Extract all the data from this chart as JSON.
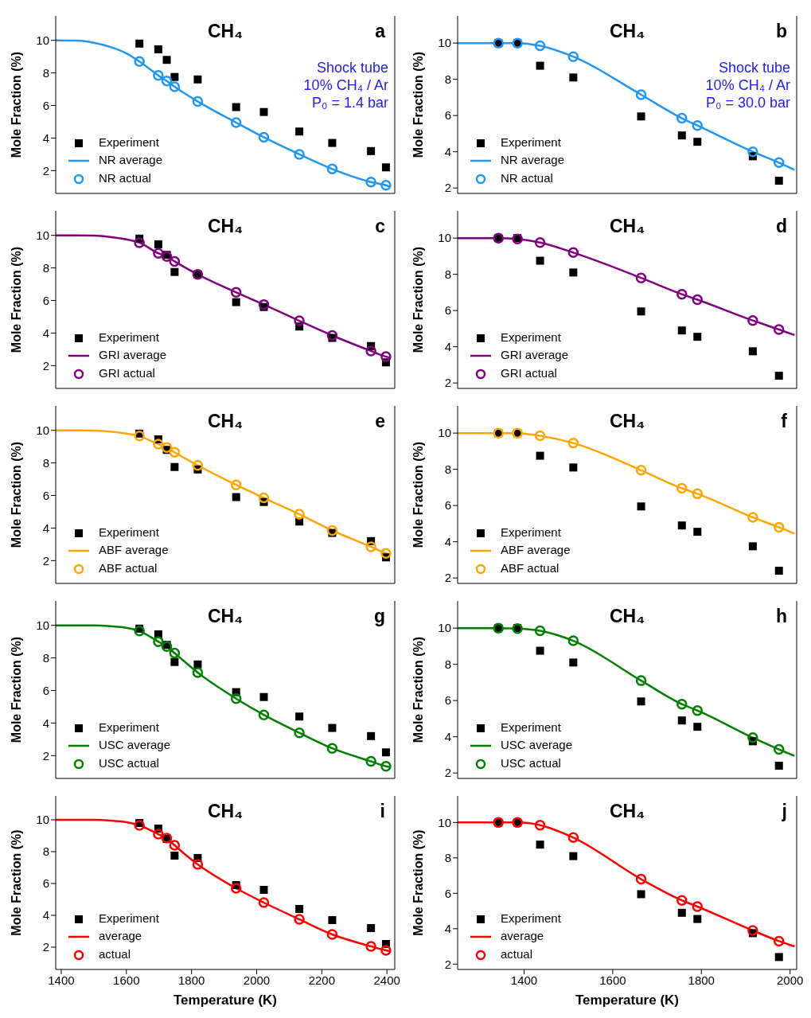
{
  "chart_data": [
    {
      "type": "line",
      "title": "CH₄",
      "ylabel": "Mole Fraction (%)",
      "annotations": [
        "a",
        "Shock tube",
        "10% CH₄ / Ar",
        "P₀ = 1.4 bar"
      ],
      "xlim": [
        1383,
        2424
      ],
      "xticks": [
        1400,
        1600,
        1800,
        2000,
        2200,
        2400
      ],
      "ylim": [
        0.6,
        11.5
      ],
      "yticks": [
        2,
        4,
        6,
        8,
        10
      ],
      "tick_labels": "y",
      "legend": "bottom left",
      "series": [
        {
          "name": "Experiment",
          "type": "scatter",
          "marker": "square",
          "color": "#000000",
          "x": [
            1640,
            1698,
            1724,
            1748,
            1819,
            1937,
            2022,
            2131,
            2232,
            2351,
            2397
          ],
          "values": [
            9.8,
            9.45,
            8.8,
            7.75,
            7.6,
            5.9,
            5.6,
            4.4,
            3.7,
            3.2,
            2.2
          ]
        },
        {
          "name": "NR average",
          "type": "line",
          "marker": "none",
          "color": "#2196f3",
          "x": [
            1383,
            1450,
            1500,
            1550,
            1600,
            1640,
            1698,
            1724,
            1748,
            1819,
            1937,
            2022,
            2131,
            2232,
            2351,
            2397,
            2410
          ],
          "values": [
            10,
            9.98,
            9.85,
            9.6,
            9.2,
            8.7,
            7.85,
            7.5,
            7.15,
            6.25,
            4.95,
            4.05,
            3.0,
            2.1,
            1.3,
            1.1,
            1.0
          ]
        },
        {
          "name": "NR actual",
          "type": "scatter",
          "marker": "circle",
          "color": "#2196f3",
          "x": [
            1640,
            1698,
            1724,
            1748,
            1819,
            1937,
            2022,
            2131,
            2232,
            2351,
            2397
          ],
          "values": [
            8.7,
            7.85,
            7.5,
            7.15,
            6.25,
            4.95,
            4.05,
            3.0,
            2.1,
            1.3,
            1.1
          ]
        }
      ]
    },
    {
      "type": "line",
      "title": "CH₄",
      "ylabel": "Mole Fraction (%)",
      "annotations": [
        "b",
        "Shock tube",
        "10% CH₄ / Ar",
        "P₀ = 30.0 bar"
      ],
      "xlim": [
        1250,
        2015
      ],
      "xticks": [
        1400,
        1600,
        1800,
        2000
      ],
      "ylim": [
        1.7,
        11.5
      ],
      "yticks": [
        2,
        4,
        6,
        8,
        10
      ],
      "tick_labels": "y",
      "legend": "bottom left",
      "series": [
        {
          "name": "Experiment",
          "type": "scatter",
          "marker": "square",
          "color": "#000000",
          "x": [
            1342,
            1385,
            1436,
            1511,
            1664,
            1756,
            1791,
            1916,
            1975
          ],
          "values": [
            10.0,
            10.0,
            8.75,
            8.1,
            5.95,
            4.9,
            4.55,
            3.75,
            2.4
          ]
        },
        {
          "name": "NR average",
          "type": "line",
          "marker": "none",
          "color": "#2196f3",
          "x": [
            1250,
            1300,
            1342,
            1385,
            1436,
            1511,
            1664,
            1756,
            1791,
            1916,
            1975,
            2010
          ],
          "values": [
            10,
            10,
            10.0,
            10.0,
            9.85,
            9.25,
            7.15,
            5.85,
            5.45,
            4.0,
            3.4,
            3.0
          ]
        },
        {
          "name": "NR actual",
          "type": "scatter",
          "marker": "circle",
          "color": "#2196f3",
          "x": [
            1342,
            1385,
            1436,
            1511,
            1664,
            1756,
            1791,
            1916,
            1975
          ],
          "values": [
            10.0,
            10.0,
            9.85,
            9.25,
            7.15,
            5.85,
            5.45,
            4.0,
            3.4
          ]
        }
      ]
    },
    {
      "type": "line",
      "title": "CH₄",
      "ylabel": "Mole Fraction (%)",
      "annotations": [
        "c"
      ],
      "xlim": [
        1383,
        2424
      ],
      "xticks": [
        1400,
        1600,
        1800,
        2000,
        2200,
        2400
      ],
      "ylim": [
        0.6,
        11.5
      ],
      "yticks": [
        2,
        4,
        6,
        8,
        10
      ],
      "tick_labels": "y",
      "legend": "bottom left",
      "series": [
        {
          "name": "Experiment",
          "type": "scatter",
          "marker": "square",
          "color": "#000000",
          "x": [
            1640,
            1698,
            1724,
            1748,
            1819,
            1937,
            2022,
            2131,
            2232,
            2351,
            2397
          ],
          "values": [
            9.8,
            9.45,
            8.8,
            7.75,
            7.6,
            5.9,
            5.6,
            4.4,
            3.7,
            3.2,
            2.2
          ]
        },
        {
          "name": "GRI average",
          "type": "line",
          "marker": "none",
          "color": "#800080",
          "x": [
            1383,
            1450,
            1500,
            1550,
            1600,
            1640,
            1698,
            1724,
            1748,
            1819,
            1937,
            2022,
            2131,
            2232,
            2351,
            2397,
            2410
          ],
          "values": [
            10,
            10,
            9.98,
            9.9,
            9.75,
            9.55,
            8.9,
            8.7,
            8.4,
            7.6,
            6.5,
            5.75,
            4.75,
            3.85,
            2.9,
            2.55,
            2.5
          ]
        },
        {
          "name": "GRI actual",
          "type": "scatter",
          "marker": "circle",
          "color": "#800080",
          "x": [
            1640,
            1698,
            1724,
            1748,
            1819,
            1937,
            2022,
            2131,
            2232,
            2351,
            2397
          ],
          "values": [
            9.55,
            8.9,
            8.7,
            8.4,
            7.6,
            6.5,
            5.75,
            4.75,
            3.85,
            2.9,
            2.55
          ]
        }
      ]
    },
    {
      "type": "line",
      "title": "CH₄",
      "ylabel": "Mole Fraction (%)",
      "annotations": [
        "d"
      ],
      "xlim": [
        1250,
        2015
      ],
      "xticks": [
        1400,
        1600,
        1800,
        2000
      ],
      "ylim": [
        1.7,
        11.5
      ],
      "yticks": [
        2,
        4,
        6,
        8,
        10
      ],
      "tick_labels": "y",
      "legend": "bottom left",
      "series": [
        {
          "name": "Experiment",
          "type": "scatter",
          "marker": "square",
          "color": "#000000",
          "x": [
            1342,
            1385,
            1436,
            1511,
            1664,
            1756,
            1791,
            1916,
            1975
          ],
          "values": [
            10.0,
            10.0,
            8.75,
            8.1,
            5.95,
            4.9,
            4.55,
            3.75,
            2.4
          ]
        },
        {
          "name": "GRI average",
          "type": "line",
          "marker": "none",
          "color": "#800080",
          "x": [
            1250,
            1300,
            1342,
            1385,
            1436,
            1511,
            1664,
            1756,
            1791,
            1916,
            1975,
            2010
          ],
          "values": [
            10,
            10,
            10.0,
            9.95,
            9.75,
            9.2,
            7.8,
            6.9,
            6.6,
            5.45,
            4.95,
            4.65
          ]
        },
        {
          "name": "GRI actual",
          "type": "scatter",
          "marker": "circle",
          "color": "#800080",
          "x": [
            1342,
            1385,
            1436,
            1511,
            1664,
            1756,
            1791,
            1916,
            1975
          ],
          "values": [
            10.0,
            9.95,
            9.75,
            9.2,
            7.8,
            6.9,
            6.6,
            5.45,
            4.95
          ]
        }
      ]
    },
    {
      "type": "line",
      "title": "CH₄",
      "ylabel": "Mole Fraction (%)",
      "annotations": [
        "e"
      ],
      "xlim": [
        1383,
        2424
      ],
      "xticks": [
        1400,
        1600,
        1800,
        2000,
        2200,
        2400
      ],
      "ylim": [
        0.6,
        11.5
      ],
      "yticks": [
        2,
        4,
        6,
        8,
        10
      ],
      "tick_labels": "y",
      "legend": "bottom left",
      "series": [
        {
          "name": "Experiment",
          "type": "scatter",
          "marker": "square",
          "color": "#000000",
          "x": [
            1640,
            1698,
            1724,
            1748,
            1819,
            1937,
            2022,
            2131,
            2232,
            2351,
            2397
          ],
          "values": [
            9.8,
            9.45,
            8.8,
            7.75,
            7.6,
            5.9,
            5.6,
            4.4,
            3.7,
            3.2,
            2.2
          ]
        },
        {
          "name": "ABF average",
          "type": "line",
          "marker": "none",
          "color": "#ffa500",
          "x": [
            1383,
            1450,
            1500,
            1550,
            1600,
            1640,
            1698,
            1724,
            1748,
            1819,
            1937,
            2022,
            2131,
            2232,
            2351,
            2397,
            2410
          ],
          "values": [
            10,
            10,
            9.98,
            9.92,
            9.8,
            9.65,
            9.15,
            8.95,
            8.65,
            7.85,
            6.65,
            5.85,
            4.85,
            3.85,
            2.85,
            2.45,
            2.35
          ]
        },
        {
          "name": "ABF actual",
          "type": "scatter",
          "marker": "circle",
          "color": "#ffa500",
          "x": [
            1640,
            1698,
            1724,
            1748,
            1819,
            1937,
            2022,
            2131,
            2232,
            2351,
            2397
          ],
          "values": [
            9.65,
            9.15,
            8.95,
            8.65,
            7.85,
            6.65,
            5.85,
            4.85,
            3.85,
            2.85,
            2.45
          ]
        }
      ]
    },
    {
      "type": "line",
      "title": "CH₄",
      "ylabel": "Mole Fraction (%)",
      "annotations": [
        "f"
      ],
      "xlim": [
        1250,
        2015
      ],
      "xticks": [
        1400,
        1600,
        1800,
        2000
      ],
      "ylim": [
        1.7,
        11.5
      ],
      "yticks": [
        2,
        4,
        6,
        8,
        10
      ],
      "tick_labels": "y",
      "legend": "bottom left",
      "series": [
        {
          "name": "Experiment",
          "type": "scatter",
          "marker": "square",
          "color": "#000000",
          "x": [
            1342,
            1385,
            1436,
            1511,
            1664,
            1756,
            1791,
            1916,
            1975
          ],
          "values": [
            10.0,
            10.0,
            8.75,
            8.1,
            5.95,
            4.9,
            4.55,
            3.75,
            2.4
          ]
        },
        {
          "name": "ABF average",
          "type": "line",
          "marker": "none",
          "color": "#ffa500",
          "x": [
            1250,
            1300,
            1342,
            1385,
            1436,
            1511,
            1664,
            1756,
            1791,
            1916,
            1975,
            2010
          ],
          "values": [
            10,
            10,
            10.0,
            10.0,
            9.85,
            9.45,
            7.95,
            6.95,
            6.65,
            5.35,
            4.8,
            4.45
          ]
        },
        {
          "name": "ABF actual",
          "type": "scatter",
          "marker": "circle",
          "color": "#ffa500",
          "x": [
            1342,
            1385,
            1436,
            1511,
            1664,
            1756,
            1791,
            1916,
            1975
          ],
          "values": [
            10.0,
            10.0,
            9.85,
            9.45,
            7.95,
            6.95,
            6.65,
            5.35,
            4.8
          ]
        }
      ]
    },
    {
      "type": "line",
      "title": "CH₄",
      "ylabel": "Mole Fraction (%)",
      "annotations": [
        "g"
      ],
      "xlim": [
        1383,
        2424
      ],
      "xticks": [
        1400,
        1600,
        1800,
        2000,
        2200,
        2400
      ],
      "ylim": [
        0.6,
        11.5
      ],
      "yticks": [
        2,
        4,
        6,
        8,
        10
      ],
      "tick_labels": "y",
      "legend": "bottom left",
      "series": [
        {
          "name": "Experiment",
          "type": "scatter",
          "marker": "square",
          "color": "#000000",
          "x": [
            1640,
            1698,
            1724,
            1748,
            1819,
            1937,
            2022,
            2131,
            2232,
            2351,
            2397
          ],
          "values": [
            9.8,
            9.45,
            8.8,
            7.75,
            7.6,
            5.9,
            5.6,
            4.4,
            3.7,
            3.2,
            2.2
          ]
        },
        {
          "name": "USC average",
          "type": "line",
          "marker": "none",
          "color": "#008000",
          "x": [
            1383,
            1450,
            1500,
            1550,
            1600,
            1640,
            1698,
            1724,
            1748,
            1819,
            1937,
            2022,
            2131,
            2232,
            2351,
            2397,
            2410
          ],
          "values": [
            10,
            10,
            10,
            9.95,
            9.85,
            9.65,
            9.0,
            8.7,
            8.3,
            7.1,
            5.5,
            4.5,
            3.4,
            2.45,
            1.65,
            1.35,
            1.3
          ]
        },
        {
          "name": "USC actual",
          "type": "scatter",
          "marker": "circle",
          "color": "#008000",
          "x": [
            1640,
            1698,
            1724,
            1748,
            1819,
            1937,
            2022,
            2131,
            2232,
            2351,
            2397
          ],
          "values": [
            9.65,
            9.0,
            8.7,
            8.3,
            7.1,
            5.5,
            4.5,
            3.4,
            2.45,
            1.65,
            1.35
          ]
        }
      ]
    },
    {
      "type": "line",
      "title": "CH₄",
      "ylabel": "Mole Fraction (%)",
      "annotations": [
        "h"
      ],
      "xlim": [
        1250,
        2015
      ],
      "xticks": [
        1400,
        1600,
        1800,
        2000
      ],
      "ylim": [
        1.7,
        11.5
      ],
      "yticks": [
        2,
        4,
        6,
        8,
        10
      ],
      "tick_labels": "y",
      "legend": "bottom left",
      "series": [
        {
          "name": "Experiment",
          "type": "scatter",
          "marker": "square",
          "color": "#000000",
          "x": [
            1342,
            1385,
            1436,
            1511,
            1664,
            1756,
            1791,
            1916,
            1975
          ],
          "values": [
            10.0,
            10.0,
            8.75,
            8.1,
            5.95,
            4.9,
            4.55,
            3.75,
            2.4
          ]
        },
        {
          "name": "USC average",
          "type": "line",
          "marker": "none",
          "color": "#008000",
          "x": [
            1250,
            1300,
            1342,
            1385,
            1436,
            1511,
            1664,
            1756,
            1791,
            1916,
            1975,
            2010
          ],
          "values": [
            10,
            10,
            10.0,
            9.97,
            9.85,
            9.3,
            7.1,
            5.8,
            5.45,
            3.95,
            3.3,
            2.95
          ]
        },
        {
          "name": "USC actual",
          "type": "scatter",
          "marker": "circle",
          "color": "#008000",
          "x": [
            1342,
            1385,
            1436,
            1511,
            1664,
            1756,
            1791,
            1916,
            1975
          ],
          "values": [
            10.0,
            9.97,
            9.85,
            9.3,
            7.1,
            5.8,
            5.45,
            3.95,
            3.3
          ]
        }
      ]
    },
    {
      "type": "line",
      "title": "CH₄",
      "xlabel": "Temperature (K)",
      "ylabel": "Mole Fraction (%)",
      "annotations": [
        "i"
      ],
      "xlim": [
        1383,
        2424
      ],
      "xticks": [
        1400,
        1600,
        1800,
        2000,
        2200,
        2400
      ],
      "ylim": [
        0.6,
        11.5
      ],
      "yticks": [
        2,
        4,
        6,
        8,
        10
      ],
      "legend": "bottom left",
      "series": [
        {
          "name": "Experiment",
          "type": "scatter",
          "marker": "square",
          "color": "#000000",
          "x": [
            1640,
            1698,
            1724,
            1748,
            1819,
            1937,
            2022,
            2131,
            2232,
            2351,
            2397
          ],
          "values": [
            9.8,
            9.45,
            8.8,
            7.75,
            7.6,
            5.9,
            5.6,
            4.4,
            3.7,
            3.2,
            2.2
          ]
        },
        {
          "name": "average",
          "type": "line",
          "marker": "none",
          "color": "#ff0000",
          "x": [
            1383,
            1450,
            1500,
            1550,
            1600,
            1640,
            1698,
            1724,
            1748,
            1819,
            1937,
            2022,
            2131,
            2232,
            2351,
            2397,
            2410
          ],
          "values": [
            10,
            10,
            10,
            9.95,
            9.85,
            9.65,
            9.1,
            8.85,
            8.4,
            7.2,
            5.7,
            4.8,
            3.75,
            2.8,
            2.05,
            1.8,
            1.75
          ]
        },
        {
          "name": "actual",
          "type": "scatter",
          "marker": "circle",
          "color": "#ff0000",
          "x": [
            1640,
            1698,
            1724,
            1748,
            1819,
            1937,
            2022,
            2131,
            2232,
            2351,
            2397
          ],
          "values": [
            9.65,
            9.1,
            8.85,
            8.4,
            7.2,
            5.7,
            4.8,
            3.75,
            2.8,
            2.05,
            1.8
          ]
        }
      ]
    },
    {
      "type": "line",
      "title": "CH₄",
      "xlabel": "Temperature (K)",
      "ylabel": "Mole Fraction (%)",
      "annotations": [
        "j"
      ],
      "xlim": [
        1250,
        2015
      ],
      "xticks": [
        1400,
        1600,
        1800,
        2000
      ],
      "ylim": [
        1.7,
        11.5
      ],
      "yticks": [
        2,
        4,
        6,
        8,
        10
      ],
      "legend": "bottom left",
      "series": [
        {
          "name": "Experiment",
          "type": "scatter",
          "marker": "square",
          "color": "#000000",
          "x": [
            1342,
            1385,
            1436,
            1511,
            1664,
            1756,
            1791,
            1916,
            1975
          ],
          "values": [
            10.0,
            10.0,
            8.75,
            8.1,
            5.95,
            4.9,
            4.55,
            3.75,
            2.4
          ]
        },
        {
          "name": "average",
          "type": "line",
          "marker": "none",
          "color": "#ff0000",
          "x": [
            1250,
            1300,
            1342,
            1385,
            1436,
            1511,
            1664,
            1756,
            1791,
            1916,
            1975,
            2010
          ],
          "values": [
            10,
            10,
            10.0,
            10.0,
            9.85,
            9.15,
            6.8,
            5.6,
            5.25,
            3.9,
            3.3,
            3.0
          ]
        },
        {
          "name": "actual",
          "type": "scatter",
          "marker": "circle",
          "color": "#ff0000",
          "x": [
            1342,
            1385,
            1436,
            1511,
            1664,
            1756,
            1791,
            1916,
            1975
          ],
          "values": [
            10.0,
            10.0,
            9.85,
            9.15,
            6.8,
            5.6,
            5.25,
            3.9,
            3.3
          ]
        }
      ]
    }
  ]
}
